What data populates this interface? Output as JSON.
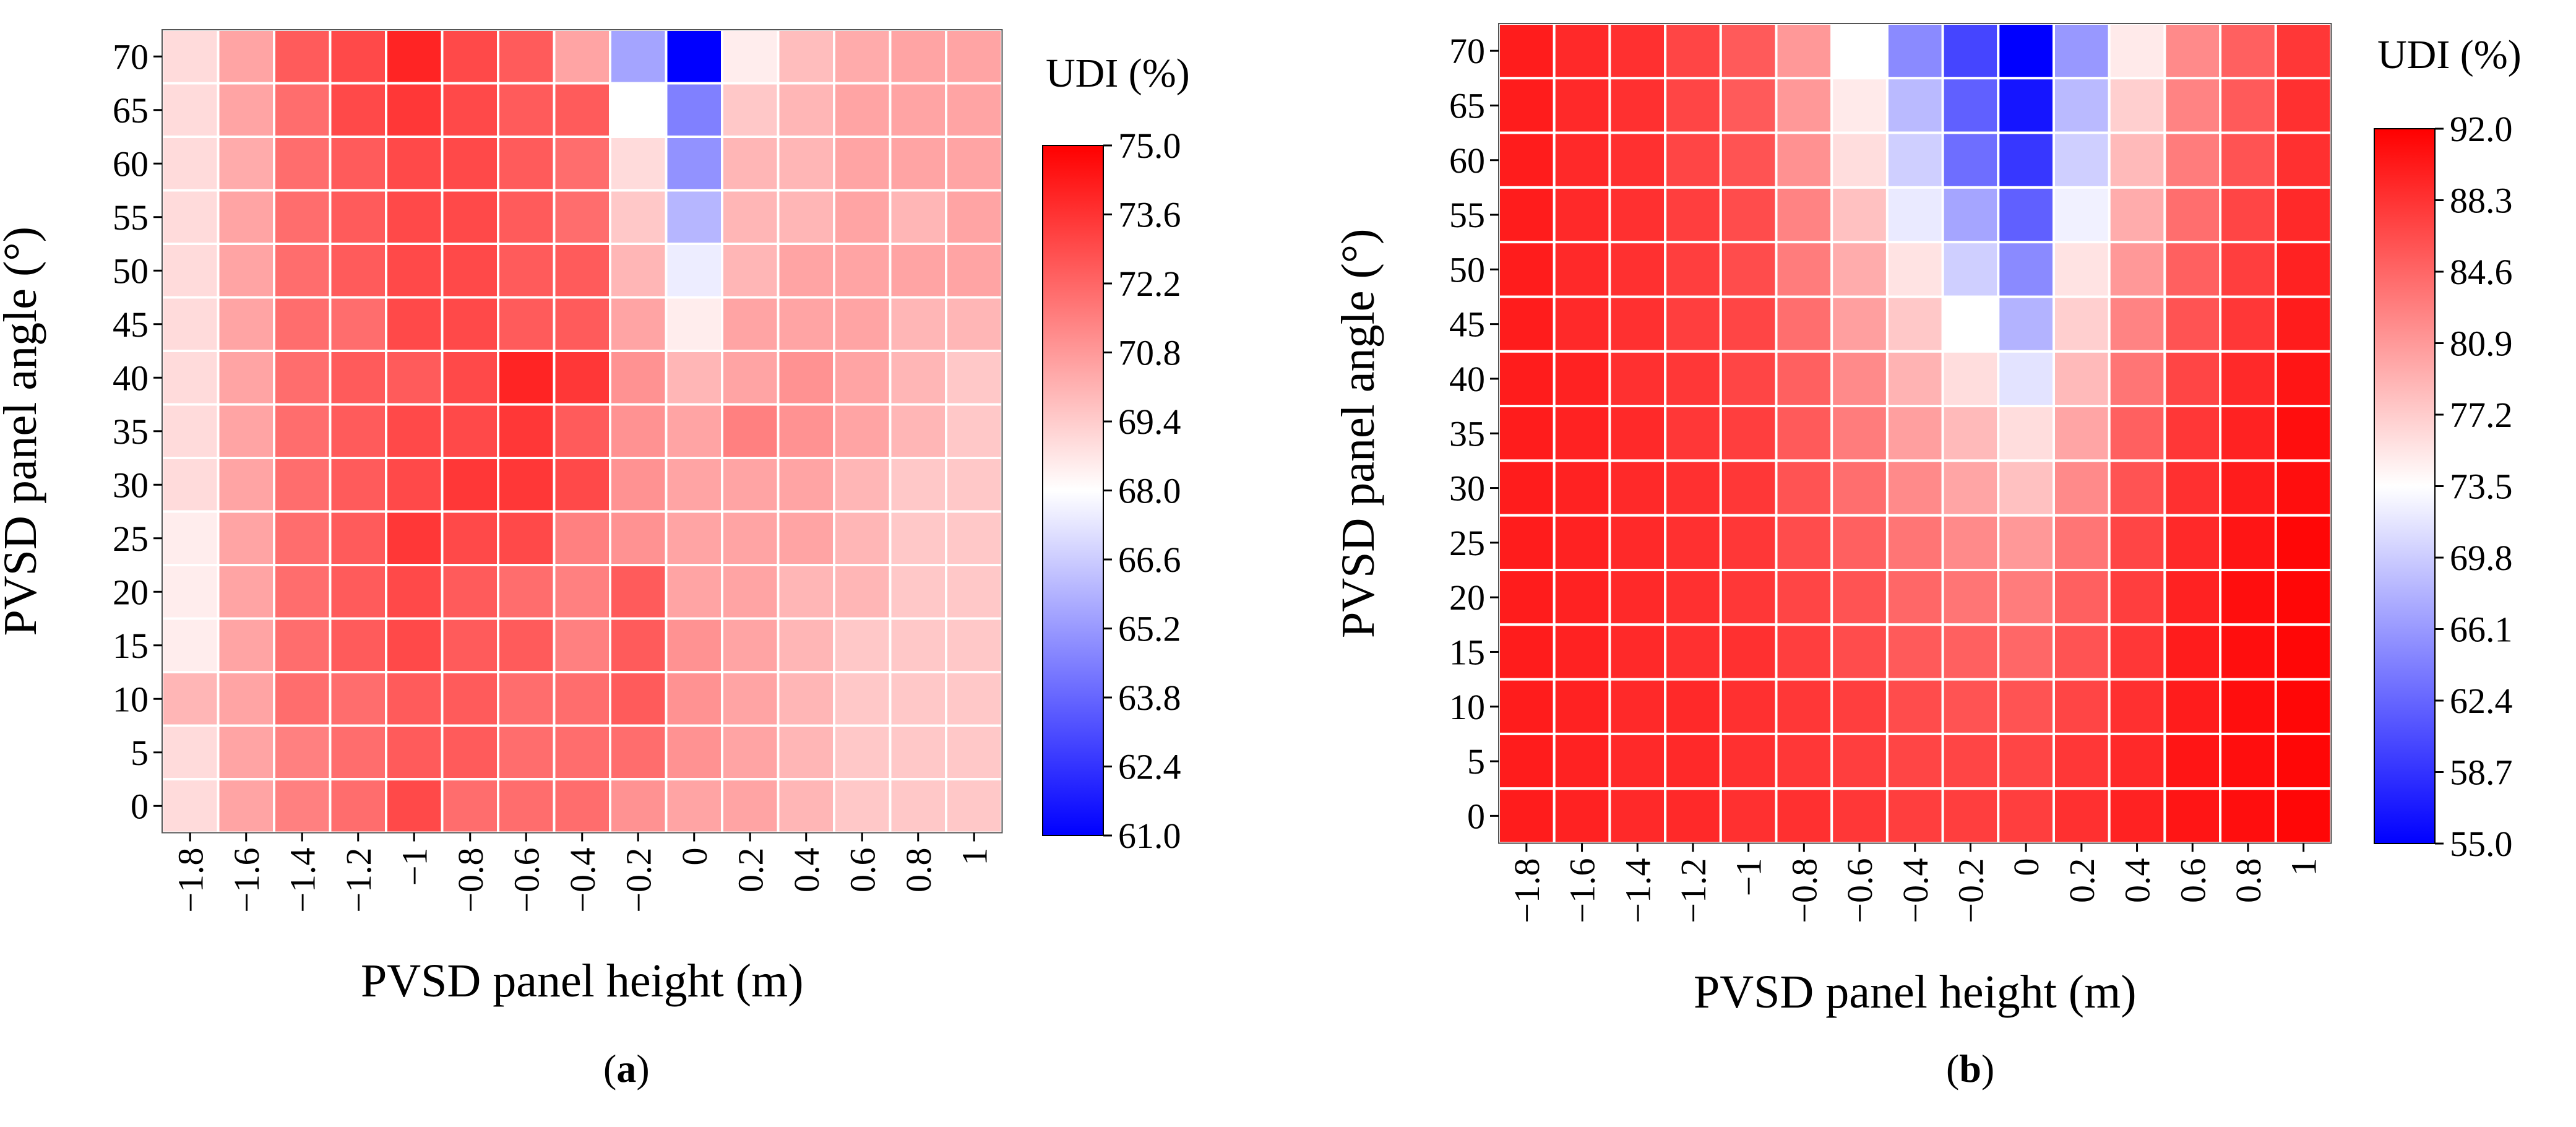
{
  "chart_data": [
    {
      "type": "heatmap",
      "panel": "a",
      "xlabel": "PVSD panel height (m)",
      "ylabel": "PVSD panel angle (°)",
      "x_ticks": [
        "-1.8",
        "-1.6",
        "-1.4",
        "-1.2",
        "-1",
        "-0.8",
        "-0.6",
        "-0.4",
        "-0.2",
        "0",
        "0.2",
        "0.4",
        "0.6",
        "0.8",
        "1"
      ],
      "y_ticks": [
        "0",
        "5",
        "10",
        "15",
        "20",
        "25",
        "30",
        "35",
        "40",
        "45",
        "50",
        "55",
        "60",
        "65",
        "70"
      ],
      "colorbar": {
        "title": "UDI (%)",
        "min": 61.0,
        "max": 75.0,
        "mid": 68.0,
        "ticks": [
          "75.0",
          "73.6",
          "72.2",
          "70.8",
          "69.4",
          "68.0",
          "66.6",
          "65.2",
          "63.8",
          "62.4",
          "61.0"
        ],
        "colors": {
          "low": "#0000ff",
          "mid": "#ffffff",
          "high": "#ff0000"
        }
      },
      "grid_note": "values[i][j]: i = angle index from 70 (top) to 0 (bottom), j = height index from -1.8 to 1",
      "values": [
        [
          69.0,
          70.5,
          72.5,
          73.0,
          74.0,
          73.0,
          72.5,
          70.5,
          65.5,
          61.0,
          68.5,
          69.8,
          70.3,
          70.5,
          70.5
        ],
        [
          69.0,
          70.5,
          72.0,
          73.0,
          73.5,
          73.0,
          72.5,
          72.5,
          68.0,
          64.5,
          69.5,
          70.0,
          70.5,
          70.5,
          70.5
        ],
        [
          69.0,
          70.3,
          72.0,
          72.5,
          73.0,
          73.0,
          72.5,
          72.0,
          69.0,
          65.0,
          70.0,
          70.0,
          70.5,
          70.5,
          70.5
        ],
        [
          69.0,
          70.5,
          72.0,
          72.5,
          73.0,
          73.0,
          72.5,
          72.0,
          69.5,
          66.0,
          70.0,
          70.0,
          70.5,
          70.0,
          70.5
        ],
        [
          69.0,
          70.5,
          72.0,
          72.5,
          73.0,
          73.0,
          72.5,
          72.5,
          70.0,
          67.5,
          70.0,
          70.5,
          70.5,
          70.5,
          70.5
        ],
        [
          69.0,
          70.5,
          72.0,
          72.0,
          73.0,
          73.0,
          72.5,
          72.5,
          70.5,
          68.5,
          70.5,
          70.5,
          70.5,
          70.0,
          70.0
        ],
        [
          69.0,
          70.5,
          72.0,
          72.5,
          72.5,
          73.0,
          74.0,
          73.5,
          71.0,
          70.0,
          70.5,
          71.0,
          70.5,
          70.0,
          69.5
        ],
        [
          69.0,
          70.5,
          72.0,
          72.5,
          73.0,
          73.0,
          73.5,
          72.5,
          71.0,
          70.5,
          71.5,
          71.0,
          70.5,
          70.0,
          69.5
        ],
        [
          69.0,
          70.5,
          72.0,
          72.5,
          73.0,
          73.5,
          73.5,
          73.0,
          71.0,
          70.5,
          70.5,
          70.5,
          70.0,
          69.5,
          69.5
        ],
        [
          68.5,
          70.5,
          72.0,
          72.5,
          73.5,
          73.0,
          73.0,
          71.5,
          71.0,
          70.5,
          70.5,
          70.5,
          70.0,
          69.5,
          69.5
        ],
        [
          68.5,
          70.5,
          72.0,
          72.5,
          73.0,
          72.5,
          72.0,
          71.5,
          72.5,
          70.5,
          70.5,
          70.0,
          70.0,
          69.5,
          69.5
        ],
        [
          68.5,
          70.5,
          72.0,
          72.5,
          73.0,
          72.5,
          72.5,
          71.5,
          72.5,
          71.0,
          70.5,
          70.0,
          69.5,
          69.5,
          69.5
        ],
        [
          70.0,
          70.5,
          72.0,
          72.0,
          72.5,
          72.5,
          72.0,
          72.0,
          72.5,
          71.0,
          70.5,
          70.0,
          69.5,
          69.5,
          69.5
        ],
        [
          69.0,
          70.5,
          71.5,
          72.0,
          72.5,
          72.5,
          72.0,
          72.0,
          72.0,
          71.0,
          70.5,
          70.0,
          69.5,
          69.5,
          69.5
        ],
        [
          69.0,
          70.5,
          71.5,
          72.0,
          73.0,
          72.0,
          72.0,
          72.0,
          71.0,
          70.5,
          70.5,
          70.0,
          69.5,
          69.5,
          69.5
        ]
      ]
    },
    {
      "type": "heatmap",
      "panel": "b",
      "xlabel": "PVSD panel height (m)",
      "ylabel": "PVSD panel angle (°)",
      "x_ticks": [
        "-1.8",
        "-1.6",
        "-1.4",
        "-1.2",
        "-1",
        "-0.8",
        "-0.6",
        "-0.4",
        "-0.2",
        "0",
        "0.2",
        "0.4",
        "0.6",
        "0.8",
        "1"
      ],
      "y_ticks": [
        "0",
        "5",
        "10",
        "15",
        "20",
        "25",
        "30",
        "35",
        "40",
        "45",
        "50",
        "55",
        "60",
        "65",
        "70"
      ],
      "colorbar": {
        "title": "UDI (%)",
        "min": 55.0,
        "max": 92.0,
        "mid": 73.5,
        "ticks": [
          "92.0",
          "88.3",
          "84.6",
          "80.9",
          "77.2",
          "73.5",
          "69.8",
          "66.1",
          "62.4",
          "58.7",
          "55.0"
        ],
        "colors": {
          "low": "#0000ff",
          "mid": "#ffffff",
          "high": "#ff0000"
        }
      },
      "grid_note": "values[i][j]: i = angle index from 70 (top) to 0 (bottom), j = height index from -1.8 to 1",
      "values": [
        [
          90.0,
          89.0,
          88.5,
          87.0,
          85.5,
          81.0,
          73.5,
          65.0,
          60.0,
          55.0,
          66.0,
          75.0,
          82.0,
          85.0,
          88.0
        ],
        [
          90.0,
          89.0,
          88.5,
          87.0,
          85.5,
          81.0,
          75.0,
          68.5,
          62.0,
          56.5,
          68.5,
          77.0,
          82.5,
          85.5,
          88.5
        ],
        [
          90.0,
          89.0,
          88.5,
          87.0,
          86.0,
          81.5,
          76.0,
          70.0,
          63.0,
          59.0,
          70.0,
          78.5,
          83.0,
          86.0,
          88.5
        ],
        [
          90.0,
          89.0,
          88.5,
          87.5,
          86.5,
          82.5,
          78.0,
          72.0,
          67.0,
          62.0,
          72.5,
          79.5,
          84.0,
          87.0,
          89.0
        ],
        [
          90.0,
          89.0,
          88.5,
          87.5,
          86.5,
          83.0,
          79.5,
          75.5,
          70.0,
          65.0,
          75.5,
          81.0,
          85.0,
          87.5,
          89.5
        ],
        [
          90.0,
          89.0,
          88.5,
          87.5,
          87.0,
          84.0,
          80.5,
          77.5,
          73.5,
          68.0,
          77.0,
          82.5,
          86.0,
          88.0,
          90.0
        ],
        [
          90.0,
          89.5,
          88.5,
          88.0,
          87.0,
          85.0,
          82.0,
          79.0,
          76.0,
          71.5,
          78.5,
          83.5,
          87.0,
          89.0,
          90.5
        ],
        [
          90.0,
          89.5,
          89.0,
          88.0,
          87.5,
          85.5,
          83.0,
          80.5,
          78.5,
          76.0,
          80.0,
          85.0,
          88.0,
          89.5,
          91.0
        ],
        [
          90.0,
          89.5,
          89.0,
          88.5,
          88.0,
          86.0,
          84.0,
          82.0,
          80.0,
          78.0,
          82.0,
          86.0,
          88.5,
          90.0,
          91.0
        ],
        [
          90.0,
          89.5,
          89.0,
          88.5,
          88.0,
          86.5,
          85.0,
          83.5,
          82.0,
          81.0,
          83.5,
          87.0,
          89.0,
          90.5,
          91.5
        ],
        [
          90.0,
          89.5,
          89.0,
          88.5,
          88.0,
          87.0,
          86.0,
          84.5,
          83.5,
          83.0,
          85.0,
          87.5,
          89.5,
          91.0,
          91.5
        ],
        [
          90.0,
          89.5,
          89.0,
          88.5,
          88.5,
          87.5,
          86.5,
          85.5,
          85.0,
          84.5,
          86.0,
          88.0,
          90.0,
          91.0,
          91.5
        ],
        [
          90.0,
          89.5,
          89.0,
          89.0,
          88.5,
          88.0,
          87.5,
          86.5,
          86.0,
          86.0,
          87.0,
          88.5,
          90.0,
          91.0,
          91.5
        ],
        [
          90.0,
          89.5,
          89.0,
          89.0,
          88.5,
          88.0,
          87.5,
          87.0,
          87.0,
          87.0,
          88.0,
          89.0,
          90.5,
          91.0,
          91.5
        ],
        [
          90.0,
          89.5,
          89.0,
          89.0,
          88.5,
          88.5,
          88.0,
          87.5,
          87.5,
          87.5,
          88.5,
          89.5,
          90.5,
          91.0,
          91.5
        ]
      ]
    }
  ],
  "captions": {
    "a": "a",
    "b": "b"
  }
}
